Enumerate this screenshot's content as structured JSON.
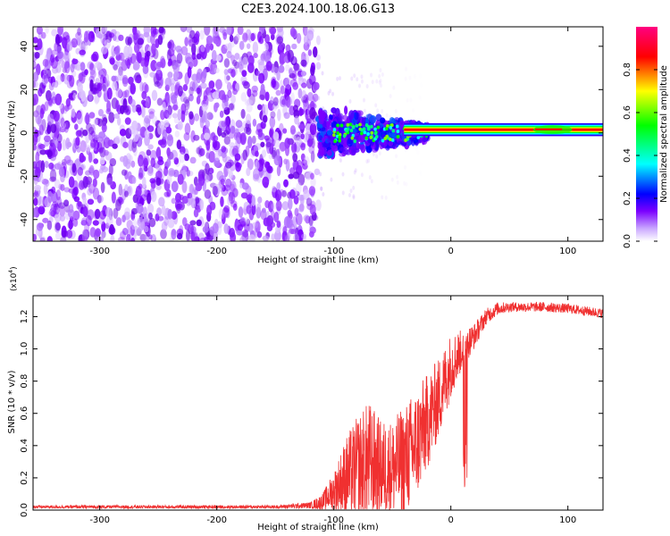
{
  "title": "C2E3.2024.100.18.06.G13",
  "chart_data": [
    {
      "type": "heatmap",
      "title": "C2E3.2024.100.18.06.G13",
      "xlabel": "Height of straight line (km)",
      "ylabel": "Frequency (Hz)",
      "xlim": [
        -357,
        130
      ],
      "ylim": [
        -50,
        49
      ],
      "xticks": [
        -300,
        -200,
        -100,
        0,
        100
      ],
      "xtick_labels": [
        "-300",
        "-200",
        "-100",
        "0",
        "100"
      ],
      "yticks": [
        -40,
        -20,
        0,
        20,
        40
      ],
      "ytick_labels": [
        "-40",
        "-20",
        "0",
        "20",
        "40"
      ],
      "colorbar": {
        "label": "Normalized spectral amplitude",
        "range": [
          0,
          1
        ],
        "ticks": [
          0.0,
          0.2,
          0.4,
          0.6,
          0.8
        ],
        "tick_labels": [
          "0.0",
          "0.2",
          "0.4",
          "0.6",
          "0.8"
        ],
        "colormap": [
          "#ffffff",
          "#7b00ff",
          "#0000ff",
          "#00ffff",
          "#00ff00",
          "#ffff00",
          "#ff0000",
          "#ff0080"
        ]
      },
      "regions": [
        {
          "x_range": [
            -357,
            -113
          ],
          "f_range": [
            -50,
            49
          ],
          "amplitude": 0.1,
          "description": "broadband noise"
        },
        {
          "x_range": [
            -113,
            -20
          ],
          "f_range": [
            -12,
            14
          ],
          "amplitude": 0.3,
          "description": "spreading signal"
        },
        {
          "x_range": [
            -20,
            130
          ],
          "f_range": [
            0,
            3
          ],
          "amplitude": 0.9,
          "description": "narrow carrier"
        }
      ]
    },
    {
      "type": "line",
      "xlabel": "Height of straight line (km)",
      "ylabel": "SNR (10 * v/v)",
      "y_multiplier_label": "(x10",
      "y_multiplier_exp": "4",
      "y_multiplier_close": ")",
      "xlim": [
        -357,
        130
      ],
      "ylim": [
        0,
        1.33
      ],
      "xticks": [
        -300,
        -200,
        -100,
        0,
        100
      ],
      "xtick_labels": [
        "-300",
        "-200",
        "-100",
        "0",
        "100"
      ],
      "yticks": [
        0.0,
        0.2,
        0.4,
        0.6,
        0.8,
        1.0,
        1.2
      ],
      "ytick_labels": [
        "0.0",
        "0.2",
        "0.4",
        "0.6",
        "0.8",
        "1.0",
        "1.2"
      ],
      "color": "#f03030",
      "series": [
        {
          "name": "SNR",
          "x": [
            -357,
            -300,
            -250,
            -200,
            -150,
            -120,
            -110,
            -100,
            -90,
            -80,
            -70,
            -60,
            -50,
            -40,
            -30,
            -20,
            -10,
            0,
            10,
            20,
            30,
            40,
            50,
            60,
            80,
            100,
            130
          ],
          "base": [
            0.02,
            0.02,
            0.02,
            0.02,
            0.02,
            0.03,
            0.05,
            0.12,
            0.2,
            0.26,
            0.3,
            0.26,
            0.26,
            0.3,
            0.4,
            0.55,
            0.7,
            0.9,
            1.0,
            1.08,
            1.2,
            1.25,
            1.26,
            1.26,
            1.26,
            1.25,
            1.22
          ],
          "amp": [
            0.01,
            0.01,
            0.01,
            0.01,
            0.01,
            0.02,
            0.05,
            0.12,
            0.25,
            0.32,
            0.38,
            0.3,
            0.3,
            0.35,
            0.35,
            0.3,
            0.25,
            0.2,
            0.12,
            0.08,
            0.05,
            0.04,
            0.03,
            0.03,
            0.03,
            0.03,
            0.03
          ]
        }
      ]
    }
  ]
}
